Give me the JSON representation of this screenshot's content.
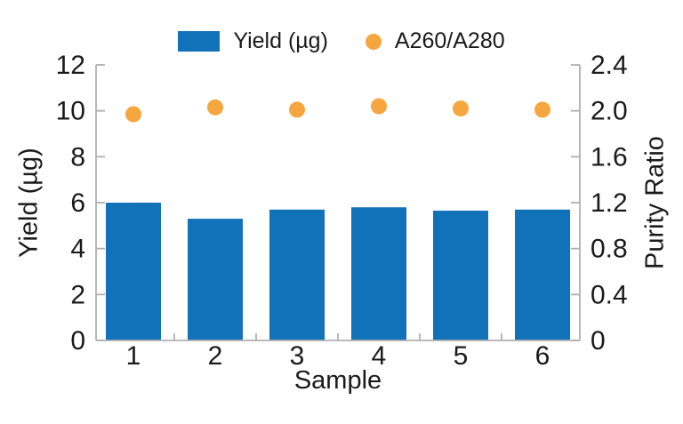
{
  "style": {
    "bar_color": "#1171b9",
    "dot_color": "#f6a63e",
    "spine_color": "#b0b0b0",
    "tick_color": "#b0b0b0",
    "text_color": "#1a1a1a",
    "background": "#ffffff"
  },
  "legend": {
    "items": [
      {
        "label": "Yield (µg)",
        "swatch": "bar",
        "color": "#1171b9"
      },
      {
        "label": "A260/A280",
        "swatch": "dot",
        "color": "#f6a63e"
      }
    ]
  },
  "chart_data": {
    "type": "combo",
    "categories": [
      "1",
      "2",
      "3",
      "4",
      "5",
      "6"
    ],
    "series": [
      {
        "name": "Yield (µg)",
        "type": "bar",
        "axis": "left",
        "color": "#1171b9",
        "values": [
          6.0,
          5.3,
          5.7,
          5.8,
          5.65,
          5.7
        ]
      },
      {
        "name": "A260/A280",
        "type": "scatter",
        "axis": "right",
        "color": "#f6a63e",
        "values": [
          1.97,
          2.03,
          2.01,
          2.04,
          2.02,
          2.01
        ]
      }
    ],
    "xlabel": "Sample",
    "ylabel_left": "Yield (µg)",
    "ylabel_right": "Purity Ratio",
    "ylim_left": [
      0,
      12
    ],
    "ylim_right": [
      0,
      2.4
    ],
    "yticks_left": [
      "0",
      "2",
      "4",
      "6",
      "8",
      "10",
      "12"
    ],
    "yticks_right": [
      "0",
      "0.4",
      "0.8",
      "1.2",
      "1.6",
      "2.0",
      "2.4"
    ],
    "grid": false,
    "legend_position": "top-center"
  }
}
